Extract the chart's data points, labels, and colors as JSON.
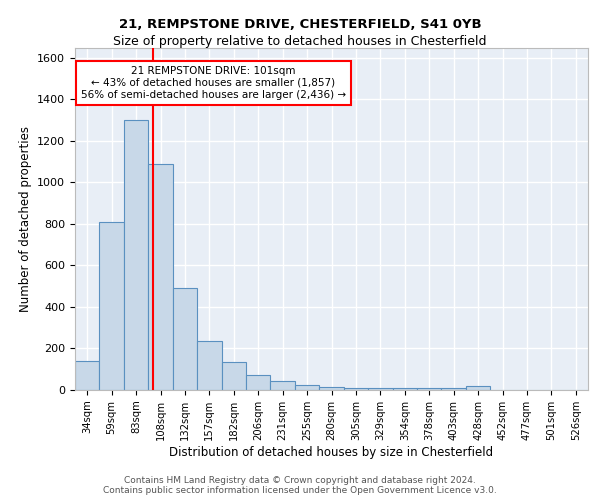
{
  "title1": "21, REMPSTONE DRIVE, CHESTERFIELD, S41 0YB",
  "title2": "Size of property relative to detached houses in Chesterfield",
  "xlabel": "Distribution of detached houses by size in Chesterfield",
  "ylabel": "Number of detached properties",
  "bar_labels": [
    "34sqm",
    "59sqm",
    "83sqm",
    "108sqm",
    "132sqm",
    "157sqm",
    "182sqm",
    "206sqm",
    "231sqm",
    "255sqm",
    "280sqm",
    "305sqm",
    "329sqm",
    "354sqm",
    "378sqm",
    "403sqm",
    "428sqm",
    "452sqm",
    "477sqm",
    "501sqm",
    "526sqm"
  ],
  "bar_values": [
    140,
    810,
    1300,
    1090,
    490,
    235,
    135,
    70,
    42,
    25,
    15,
    12,
    10,
    8,
    8,
    8,
    20,
    0,
    0,
    0,
    0
  ],
  "bar_color": "#c8d8e8",
  "bar_edge_color": "#5a90c0",
  "background_color": "#e8eef6",
  "grid_color": "white",
  "vline_x": 2.68,
  "vline_color": "red",
  "annotation_text": "21 REMPSTONE DRIVE: 101sqm\n← 43% of detached houses are smaller (1,857)\n56% of semi-detached houses are larger (2,436) →",
  "annotation_box_color": "white",
  "annotation_box_edge": "red",
  "footer_text": "Contains HM Land Registry data © Crown copyright and database right 2024.\nContains public sector information licensed under the Open Government Licence v3.0.",
  "ylim": [
    0,
    1650
  ],
  "yticks": [
    0,
    200,
    400,
    600,
    800,
    1000,
    1200,
    1400,
    1600
  ]
}
